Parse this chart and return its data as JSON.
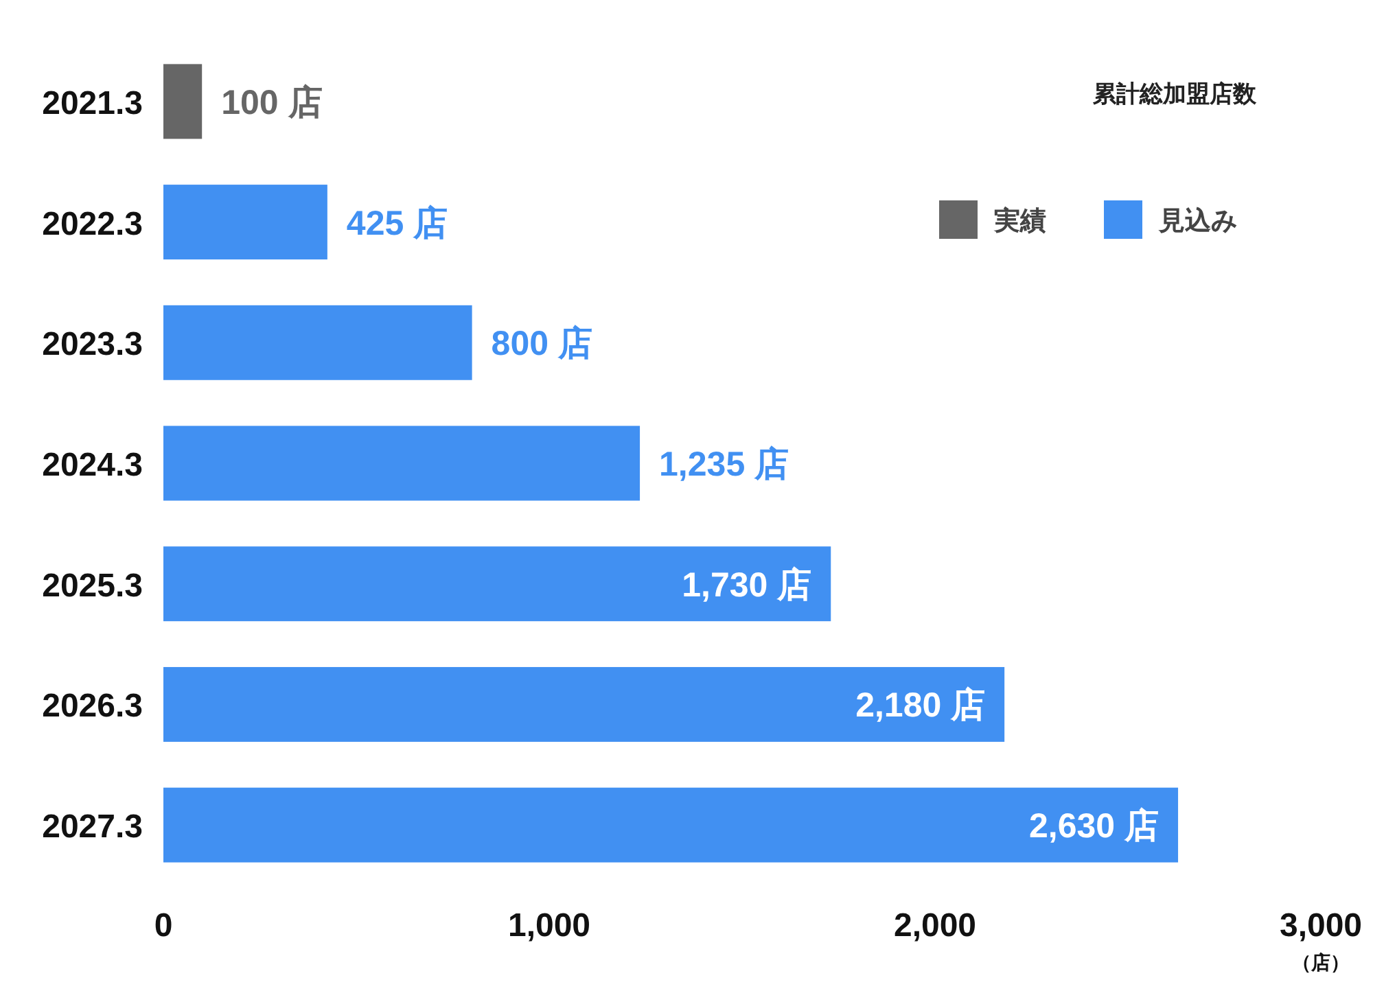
{
  "chart_data": {
    "type": "bar",
    "orientation": "horizontal",
    "categories": [
      "2021.3",
      "2022.3",
      "2023.3",
      "2024.3",
      "2025.3",
      "2026.3",
      "2027.3"
    ],
    "series": [
      {
        "name": "実績",
        "color": "#666666",
        "values": [
          100,
          null,
          null,
          null,
          null,
          null,
          null
        ],
        "value_labels": [
          "100 店",
          null,
          null,
          null,
          null,
          null,
          null
        ]
      },
      {
        "name": "見込み",
        "color": "#4190f2",
        "values": [
          null,
          425,
          800,
          1235,
          1730,
          2180,
          2630
        ],
        "value_labels": [
          null,
          "425 店",
          "800 店",
          "1,235 店",
          "1,730 店",
          "2,180 店",
          "2,630 店"
        ]
      }
    ],
    "xlim": [
      0,
      3000
    ],
    "xticks": [
      0,
      {
        "value": 1000,
        "label": "1,000"
      },
      {
        "value": 2000,
        "label": "2,000"
      },
      {
        "value": 3000,
        "label": "3,000"
      }
    ],
    "xlabel": "（店）",
    "legend": "top right",
    "legend_title": "累計総加盟店数"
  }
}
